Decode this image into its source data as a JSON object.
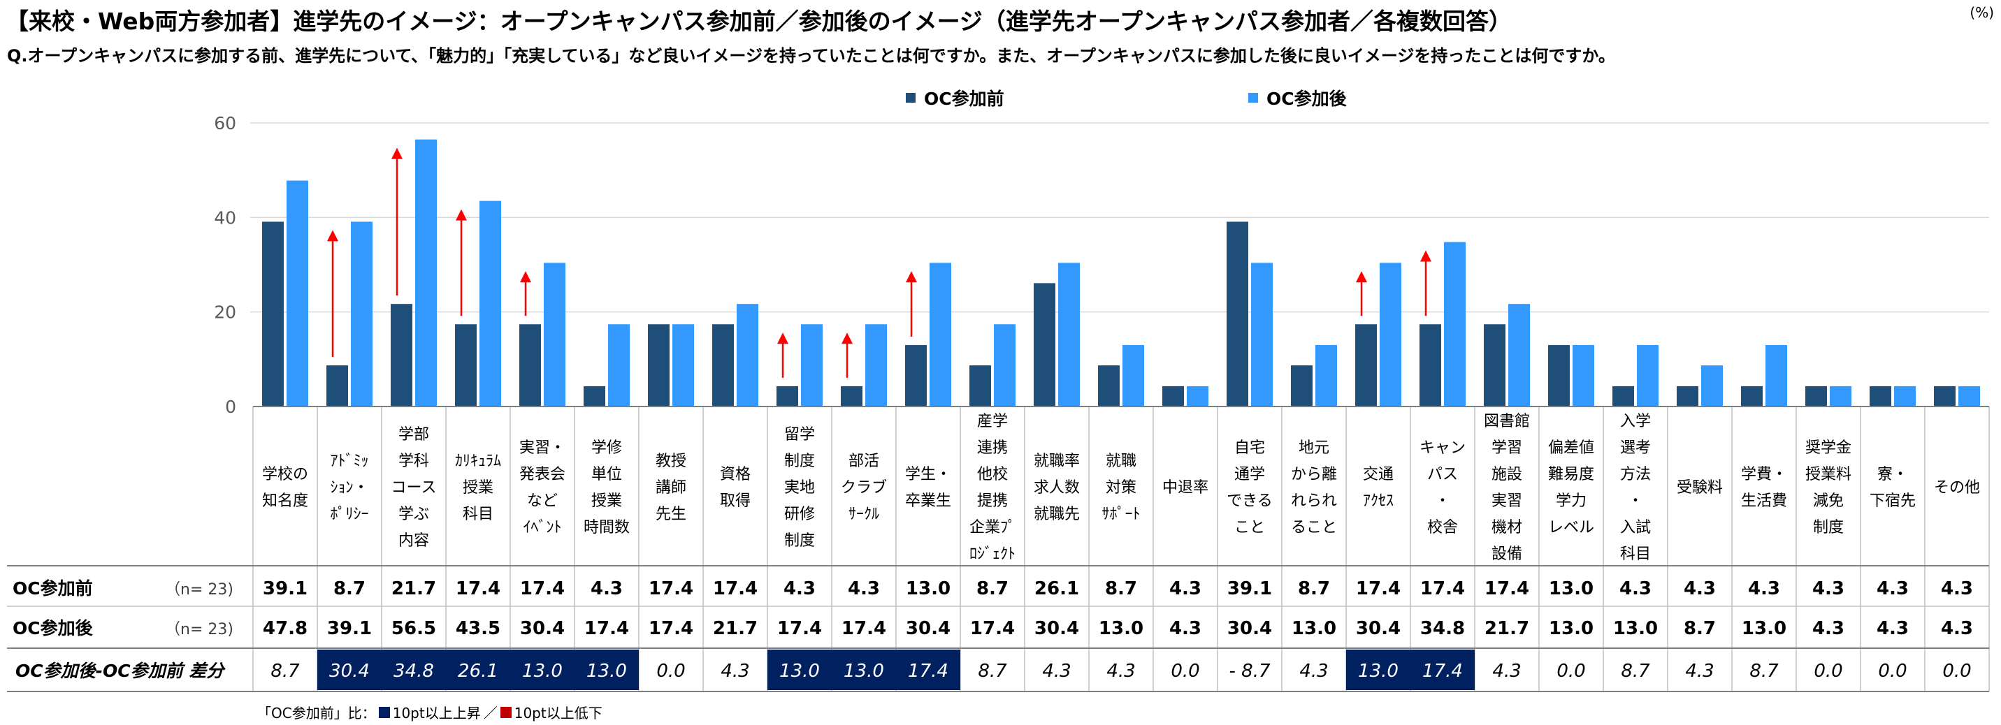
{
  "title": "【来校・Web両方参加者】進学先のイメージ：オープンキャンパス参加前／参加後のイメージ（進学先オープンキャンパス参加者／各複数回答）",
  "unit": "(%)",
  "question": "Q.オープンキャンパスに参加する前、進学先について、「魅力的」「充実している」など良いイメージを持っていたことは何ですか。また、オープンキャンパスに参加した後に良いイメージを持ったことは何ですか。",
  "colors": {
    "before": "#1f4e79",
    "after": "#3399ff",
    "arrow": "#ff0000",
    "highlight": "#002060",
    "grid": "#d9d9d9"
  },
  "footnote": {
    "prefix": "「OC参加前」比：",
    "up_label": "10pt以上上昇",
    "separator": "／",
    "down_label": "10pt以上低下",
    "up_color": "#002060",
    "down_color": "#c00000"
  },
  "chart_data": {
    "type": "bar",
    "ylim": [
      0,
      60
    ],
    "yticks": [
      0,
      20,
      40,
      60
    ],
    "legend_position": "top",
    "grid": true,
    "categories": [
      [
        "学校の",
        "知名度"
      ],
      [
        "ｱﾄﾞﾐｯ",
        "ｼｮﾝ・",
        "ﾎﾟﾘｼｰ"
      ],
      [
        "学部",
        "学科",
        "コース",
        "学ぶ",
        "内容"
      ],
      [
        "ｶﾘｷｭﾗﾑ",
        "授業",
        "科目"
      ],
      [
        "実習・",
        "発表会",
        "など",
        "ｲﾍﾞﾝﾄ"
      ],
      [
        "学修",
        "単位",
        "授業",
        "時間数"
      ],
      [
        "教授",
        "講師",
        "先生"
      ],
      [
        "資格",
        "取得"
      ],
      [
        "留学",
        "制度",
        "実地",
        "研修",
        "制度"
      ],
      [
        "部活",
        "クラブ",
        "ｻｰｸﾙ"
      ],
      [
        "学生・",
        "卒業生"
      ],
      [
        "産学",
        "連携",
        "他校",
        "提携",
        "企業ﾌﾟ",
        "ﾛｼﾞｪｸﾄ"
      ],
      [
        "就職率",
        "求人数",
        "就職先"
      ],
      [
        "就職",
        "対策",
        "ｻﾎﾟｰﾄ"
      ],
      [
        "中退率"
      ],
      [
        "自宅",
        "通学",
        "できる",
        "こと"
      ],
      [
        "地元",
        "から離",
        "れられ",
        "ること"
      ],
      [
        "交通",
        "ｱｸｾｽ"
      ],
      [
        "キャン",
        "パス",
        "・",
        "校舎"
      ],
      [
        "図書館",
        "学習",
        "施設",
        "実習",
        "機材",
        "設備"
      ],
      [
        "偏差値",
        "難易度",
        "学力",
        "レベル"
      ],
      [
        "入学",
        "選考",
        "方法",
        "・",
        "入試",
        "科目"
      ],
      [
        "受験料"
      ],
      [
        "学費・",
        "生活費"
      ],
      [
        "奨学金",
        "授業料",
        "減免",
        "制度"
      ],
      [
        "寮・",
        "下宿先"
      ],
      [
        "その他"
      ]
    ],
    "series": [
      {
        "name": "OC参加前",
        "n_label": "（n= 23)",
        "values": [
          39.1,
          8.7,
          21.7,
          17.4,
          17.4,
          4.3,
          17.4,
          17.4,
          4.3,
          4.3,
          13.0,
          8.7,
          26.1,
          8.7,
          4.3,
          39.1,
          8.7,
          17.4,
          17.4,
          17.4,
          13.0,
          4.3,
          4.3,
          4.3,
          4.3,
          4.3,
          4.3
        ],
        "labels": [
          "39.1",
          "8.7",
          "21.7",
          "17.4",
          "17.4",
          "4.3",
          "17.4",
          "17.4",
          "4.3",
          "4.3",
          "13.0",
          "8.7",
          "26.1",
          "8.7",
          "4.3",
          "39.1",
          "8.7",
          "17.4",
          "17.4",
          "17.4",
          "13.0",
          "4.3",
          "4.3",
          "4.3",
          "4.3",
          "4.3",
          "4.3"
        ]
      },
      {
        "name": "OC参加後",
        "n_label": "（n= 23)",
        "values": [
          47.8,
          39.1,
          56.5,
          43.5,
          30.4,
          17.4,
          17.4,
          21.7,
          17.4,
          17.4,
          30.4,
          17.4,
          30.4,
          13.0,
          4.3,
          30.4,
          13.0,
          30.4,
          34.8,
          21.7,
          13.0,
          13.0,
          8.7,
          13.0,
          4.3,
          4.3,
          4.3
        ],
        "labels": [
          "47.8",
          "39.1",
          "56.5",
          "43.5",
          "30.4",
          "17.4",
          "17.4",
          "21.7",
          "17.4",
          "17.4",
          "30.4",
          "17.4",
          "30.4",
          "13.0",
          "4.3",
          "30.4",
          "13.0",
          "30.4",
          "34.8",
          "21.7",
          "13.0",
          "13.0",
          "8.7",
          "13.0",
          "4.3",
          "4.3",
          "4.3"
        ]
      }
    ],
    "diff": {
      "label": "OC参加後-OC参加前 差分",
      "values": [
        8.7,
        30.4,
        34.8,
        26.1,
        13.0,
        13.0,
        0.0,
        4.3,
        13.0,
        13.0,
        17.4,
        8.7,
        4.3,
        4.3,
        0.0,
        -8.7,
        4.3,
        13.0,
        17.4,
        4.3,
        0.0,
        8.7,
        4.3,
        8.7,
        0.0,
        0.0,
        0.0
      ],
      "labels": [
        "8.7",
        "30.4",
        "34.8",
        "26.1",
        "13.0",
        "13.0",
        "0.0",
        "4.3",
        "13.0",
        "13.0",
        "17.4",
        "8.7",
        "4.3",
        "4.3",
        "0.0",
        "- 8.7",
        "4.3",
        "13.0",
        "17.4",
        "4.3",
        "0.0",
        "8.7",
        "4.3",
        "8.7",
        "0.0",
        "0.0",
        "0.0"
      ],
      "highlight_up": [
        1,
        2,
        3,
        4,
        5,
        8,
        9,
        10,
        17,
        18
      ]
    },
    "arrows": [
      1,
      2,
      3,
      4,
      8,
      9,
      10,
      17,
      18
    ]
  }
}
